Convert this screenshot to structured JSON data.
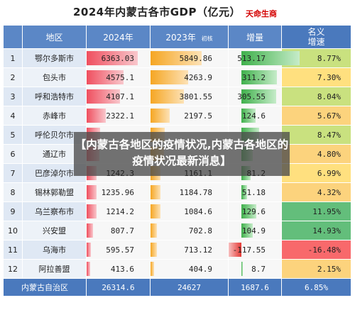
{
  "title": "2024年内蒙古各市GDP（亿元）",
  "brand": "天命生商",
  "overlay_text": "【内蒙古各地区的疫情状况,内蒙古各地区的疫情状况最新消息】",
  "chart_data": {
    "type": "table",
    "columns": [
      "地区",
      "2024年",
      "2023年",
      "初核",
      "增量",
      "名义",
      "增速"
    ],
    "rows": [
      {
        "idx": "1",
        "region": "鄂尔多斯市",
        "gdp2024": "6363.03",
        "gdp2023": "5849.86",
        "increase": "513.17",
        "growth": "8.77%",
        "growth_value": 8.77
      },
      {
        "idx": "2",
        "region": "包头市",
        "gdp2024": "4575.1",
        "gdp2023": "4263.9",
        "increase": "311.2",
        "growth": "7.30%",
        "growth_value": 7.3
      },
      {
        "idx": "3",
        "region": "呼和浩特市",
        "gdp2024": "4107.1",
        "gdp2023": "3801.55",
        "increase": "305.55",
        "growth": "8.04%",
        "growth_value": 8.04
      },
      {
        "idx": "4",
        "region": "赤峰市",
        "gdp2024": "2322.1",
        "gdp2023": "2197.5",
        "increase": "124.6",
        "growth": "5.67%",
        "growth_value": 5.67
      },
      {
        "idx": "5",
        "region": "呼伦贝尔市",
        "gdp2024": "",
        "gdp2023": "",
        "increase": "",
        "growth": "8.47%",
        "growth_value": 8.47
      },
      {
        "idx": "6",
        "region": "通辽市",
        "gdp2024": "",
        "gdp2023": "",
        "increase": "",
        "growth": "4.80%",
        "growth_value": 4.8
      },
      {
        "idx": "7",
        "region": "巴彦淖尔市",
        "gdp2024": "1242.3",
        "gdp2023": "1161.1",
        "increase": "81.2",
        "growth": "6.99%",
        "growth_value": 6.99
      },
      {
        "idx": "8",
        "region": "锡林郭勒盟",
        "gdp2024": "1235.96",
        "gdp2023": "1184.78",
        "increase": "51.18",
        "growth": "4.32%",
        "growth_value": 4.32
      },
      {
        "idx": "9",
        "region": "乌兰察布市",
        "gdp2024": "1214.2",
        "gdp2023": "1084.6",
        "increase": "129.6",
        "growth": "11.95%",
        "growth_value": 11.95
      },
      {
        "idx": "10",
        "region": "兴安盟",
        "gdp2024": "807.7",
        "gdp2023": "702.8",
        "increase": "104.9",
        "growth": "14.93%",
        "growth_value": 14.93
      },
      {
        "idx": "11",
        "region": "乌海市",
        "gdp2024": "595.57",
        "gdp2023": "713.12",
        "increase": "-117.55",
        "growth": "-16.48%",
        "growth_value": -16.48
      },
      {
        "idx": "12",
        "region": "阿拉善盟",
        "gdp2024": "413.6",
        "gdp2023": "404.9",
        "increase": "8.7",
        "growth": "2.15%",
        "growth_value": 2.15
      }
    ],
    "total": {
      "region": "内蒙古自治区",
      "gdp2024": "26314.6",
      "gdp2023": "24627",
      "increase": "1687.6",
      "growth": "6.85%"
    },
    "bar_fractions": {
      "gdp2024": [
        1.0,
        0.72,
        0.65,
        0.37,
        0.27,
        0.25,
        0.2,
        0.19,
        0.19,
        0.13,
        0.09,
        0.07
      ],
      "gdp2023": [
        1.0,
        0.73,
        0.65,
        0.38,
        0.28,
        0.26,
        0.2,
        0.2,
        0.19,
        0.12,
        0.12,
        0.07
      ],
      "increase": [
        1.0,
        0.61,
        0.6,
        0.24,
        0.3,
        0.2,
        0.16,
        0.1,
        0.25,
        0.2,
        -0.23,
        0.02
      ]
    },
    "colors": {
      "gdp2024": "#ef4f5f",
      "gdp2023": "#f5a623",
      "increase_positive": "#3fb04b",
      "increase_negative": "#e53935",
      "growth_high": "#63be7b",
      "growth_mid": "#ffeb84",
      "growth_low": "#f8696b"
    }
  }
}
